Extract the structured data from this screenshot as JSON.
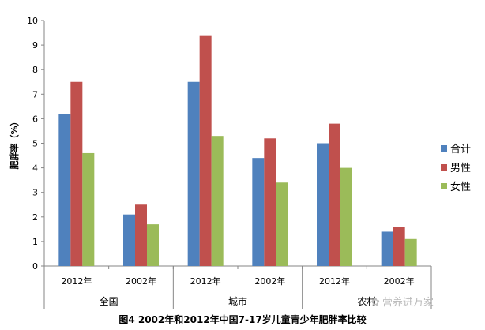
{
  "chart_data": {
    "type": "bar",
    "title": "图4 2002年和2012年中国7-17岁儿童青少年肥胖率比较",
    "ylabel": "肥胖率（%）",
    "xlabel": "",
    "ylim": [
      0,
      10
    ],
    "yticks": [
      0,
      1,
      2,
      3,
      4,
      5,
      6,
      7,
      8,
      9,
      10
    ],
    "grid": false,
    "legend_position": "right",
    "categories": [
      "2012年",
      "2002年",
      "2012年",
      "2002年",
      "2012年",
      "2002年"
    ],
    "groups": [
      {
        "label": "全国",
        "span": [
          0,
          1
        ]
      },
      {
        "label": "城市",
        "span": [
          2,
          3
        ]
      },
      {
        "label": "农村",
        "span": [
          4,
          5
        ]
      }
    ],
    "series": [
      {
        "name": "合计",
        "color": "#4F81BD",
        "values": [
          6.2,
          2.1,
          7.5,
          4.4,
          5.0,
          1.4
        ]
      },
      {
        "name": "男性",
        "color": "#C0504D",
        "values": [
          7.5,
          2.5,
          9.4,
          5.2,
          5.8,
          1.6
        ]
      },
      {
        "name": "女性",
        "color": "#9BBB59",
        "values": [
          4.6,
          1.7,
          5.3,
          3.4,
          4.0,
          1.1
        ]
      }
    ]
  },
  "watermark": {
    "icon": "wechat-icon",
    "text": "营养进万家"
  }
}
